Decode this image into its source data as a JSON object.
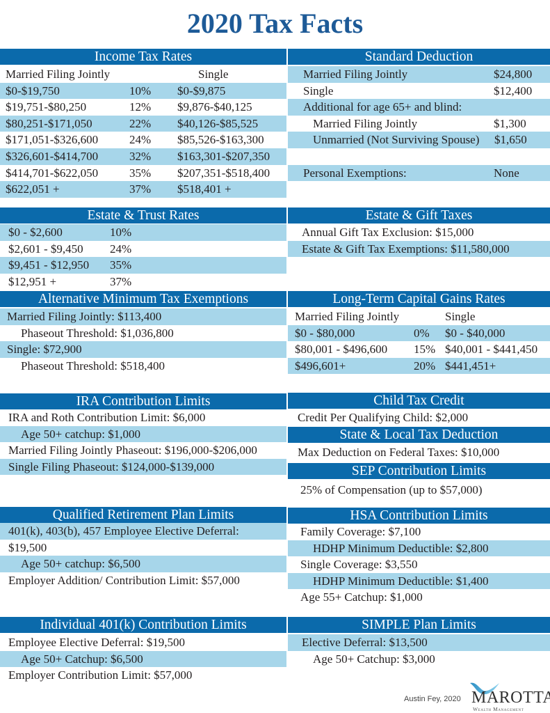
{
  "title": "2020 Tax Facts",
  "colors": {
    "header_bg": "#0b6aab",
    "row_shade": "#a7d6ea",
    "title": "#1d5a97"
  },
  "sections": {
    "income": {
      "title": "Income Tax Rates",
      "rows": [
        [
          "Married Filing Jointly",
          "",
          "Single"
        ],
        [
          "$0-$19,750",
          "10%",
          "$0-$9,875"
        ],
        [
          "$19,751-$80,250",
          "12%",
          "$9,876-$40,125"
        ],
        [
          "$80,251-$171,050",
          "22%",
          "$40,126-$85,525"
        ],
        [
          "$171,051-$326,600",
          "24%",
          "$85,526-$163,300"
        ],
        [
          "$326,601-$414,700",
          "32%",
          "$163,301-$207,350"
        ],
        [
          "$414,701-$622,050",
          "35%",
          "$207,351-$518,400"
        ],
        [
          "$622,051 +",
          "37%",
          "$518,401 +"
        ]
      ]
    },
    "standard": {
      "title": "Standard Deduction",
      "rows": [
        [
          "Married Filing Jointly",
          "$24,800"
        ],
        [
          "Single",
          "$12,400"
        ],
        [
          "Additional for age 65+ and blind:",
          ""
        ],
        [
          "Married Filing Jointly",
          "$1,300"
        ],
        [
          "Unmarried (Not Surviving Spouse)",
          "$1,650"
        ],
        [
          "",
          ""
        ],
        [
          "Personal Exemptions:",
          "None"
        ]
      ]
    },
    "estate_trust": {
      "title": "Estate & Trust Rates",
      "rows": [
        [
          "$0 - $2,600",
          "10%"
        ],
        [
          "$2,601 - $9,450",
          "24%"
        ],
        [
          "$9,451 - $12,950",
          "35%"
        ],
        [
          "$12,951 +",
          "37%"
        ]
      ]
    },
    "estate_gift": {
      "title": "Estate & Gift Taxes",
      "rows": [
        [
          "Annual Gift Tax Exclusion: $15,000"
        ],
        [
          "Estate & Gift Tax Exemptions: $11,580,000"
        ]
      ]
    },
    "amt": {
      "title": "Alternative Minimum Tax Exemptions",
      "rows": [
        [
          "Married Filing Jointly: $113,400"
        ],
        [
          "Phaseout Threshold: $1,036,800"
        ],
        [
          "Single: $72,900"
        ],
        [
          "Phaseout Threshold: $518,400"
        ]
      ]
    },
    "ltcg": {
      "title": "Long-Term Capital Gains Rates",
      "rows": [
        [
          "Married Filing Jointly",
          "",
          "Single"
        ],
        [
          "$0 - $80,000",
          "0%",
          "$0 - $40,000"
        ],
        [
          "$80,001 - $496,600",
          "15%",
          "$40,001 - $441,450"
        ],
        [
          "$496,601+",
          "20%",
          "$441,451+"
        ]
      ]
    },
    "ira": {
      "title": "IRA Contribution Limits",
      "rows": [
        [
          "IRA and Roth Contribution Limit: $6,000"
        ],
        [
          "Age 50+ catchup: $1,000"
        ],
        [
          "Married Filing Jointly Phaseout: $196,000-$206,000"
        ],
        [
          "Single Filing Phaseout: $124,000-$139,000"
        ]
      ]
    },
    "child": {
      "title": "Child Tax Credit",
      "rows": [
        [
          "Credit Per Qualifying Child: $2,000"
        ]
      ]
    },
    "salt": {
      "title": "State & Local Tax Deduction",
      "rows": [
        [
          "Max Deduction on Federal Taxes: $10,000"
        ]
      ]
    },
    "sep": {
      "title": "SEP Contribution Limits",
      "rows": [
        [
          "25% of Compensation (up to $57,000)"
        ]
      ]
    },
    "qrp": {
      "title": "Qualified Retirement Plan Limits",
      "rows": [
        [
          "401(k), 403(b), 457 Employee Elective Deferral:"
        ],
        [
          "$19,500"
        ],
        [
          "Age 50+ catchup: $6,500"
        ],
        [
          "Employer Addition/ Contribution Limit: $57,000"
        ]
      ]
    },
    "hsa": {
      "title": "HSA Contribution Limits",
      "rows": [
        [
          "Family Coverage: $7,100"
        ],
        [
          "HDHP Minimum Deductible: $2,800"
        ],
        [
          "Single Coverage: $3,550"
        ],
        [
          "HDHP Minimum Deductible: $1,400"
        ],
        [
          "Age 55+ Catchup: $1,000"
        ]
      ]
    },
    "i401k": {
      "title": "Individual 401(k) Contribution Limits",
      "rows": [
        [
          "Employee Elective Deferral: $19,500"
        ],
        [
          "Age 50+ Catchup: $6,500"
        ],
        [
          "Employer Contribution Limit: $57,000"
        ]
      ]
    },
    "simple": {
      "title": "SIMPLE Plan Limits",
      "rows": [
        [
          "Elective Deferral: $13,500"
        ],
        [
          "Age 50+ Catchup: $3,000"
        ]
      ]
    }
  },
  "footer": {
    "credit": "Austin Fey, 2020",
    "logo_name": "MAROTTA",
    "logo_sub": "Wealth Management"
  }
}
